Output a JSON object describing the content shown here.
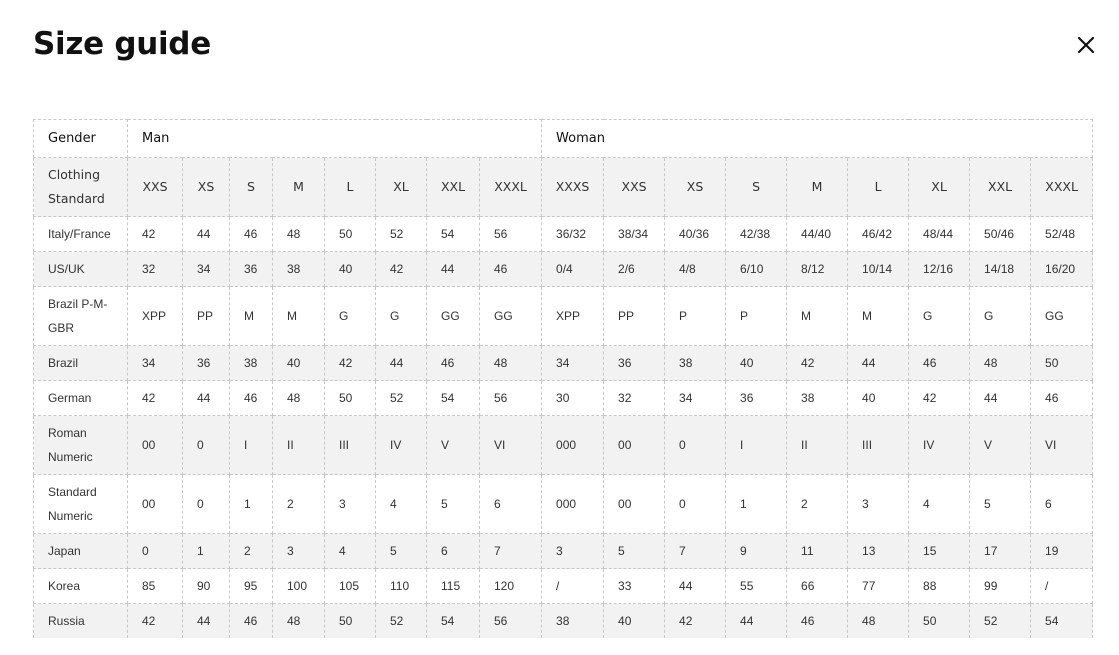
{
  "title": "Size guide",
  "close_icon": "close-icon",
  "table": {
    "gender_label": "Gender",
    "groups": [
      "Man",
      "Woman"
    ],
    "standard_label": "Clothing Standard",
    "man_sizes": [
      "XXS",
      "XS",
      "S",
      "M",
      "L",
      "XL",
      "XXL",
      "XXXL"
    ],
    "woman_sizes": [
      "XXXS",
      "XXS",
      "XS",
      "S",
      "M",
      "L",
      "XL",
      "XXL",
      "XXXL"
    ],
    "rows": [
      {
        "label": "Italy/France",
        "man": [
          "42",
          "44",
          "46",
          "48",
          "50",
          "52",
          "54",
          "56"
        ],
        "woman": [
          "36/32",
          "38/34",
          "40/36",
          "42/38",
          "44/40",
          "46/42",
          "48/44",
          "50/46",
          "52/48"
        ]
      },
      {
        "label": "US/UK",
        "man": [
          "32",
          "34",
          "36",
          "38",
          "40",
          "42",
          "44",
          "46"
        ],
        "woman": [
          "0/4",
          "2/6",
          "4/8",
          "6/10",
          "8/12",
          "10/14",
          "12/16",
          "14/18",
          "16/20"
        ]
      },
      {
        "label": "Brazil P-M-GBR",
        "man": [
          "XPP",
          "PP",
          "M",
          "M",
          "G",
          "G",
          "GG",
          "GG"
        ],
        "woman": [
          "XPP",
          "PP",
          "P",
          "P",
          "M",
          "M",
          "G",
          "G",
          "GG"
        ]
      },
      {
        "label": "Brazil",
        "man": [
          "34",
          "36",
          "38",
          "40",
          "42",
          "44",
          "46",
          "48"
        ],
        "woman": [
          "34",
          "36",
          "38",
          "40",
          "42",
          "44",
          "46",
          "48",
          "50"
        ]
      },
      {
        "label": "German",
        "man": [
          "42",
          "44",
          "46",
          "48",
          "50",
          "52",
          "54",
          "56"
        ],
        "woman": [
          "30",
          "32",
          "34",
          "36",
          "38",
          "40",
          "42",
          "44",
          "46"
        ]
      },
      {
        "label": "Roman Numeric",
        "man": [
          "00",
          "0",
          "I",
          "II",
          "III",
          "IV",
          "V",
          "VI"
        ],
        "woman": [
          "000",
          "00",
          "0",
          "I",
          "II",
          "III",
          "IV",
          "V",
          "VI"
        ]
      },
      {
        "label": "Standard Numeric",
        "man": [
          "00",
          "0",
          "1",
          "2",
          "3",
          "4",
          "5",
          "6"
        ],
        "woman": [
          "000",
          "00",
          "0",
          "1",
          "2",
          "3",
          "4",
          "5",
          "6"
        ]
      },
      {
        "label": "Japan",
        "man": [
          "0",
          "1",
          "2",
          "3",
          "4",
          "5",
          "6",
          "7"
        ],
        "woman": [
          "3",
          "5",
          "7",
          "9",
          "11",
          "13",
          "15",
          "17",
          "19"
        ]
      },
      {
        "label": "Korea",
        "man": [
          "85",
          "90",
          "95",
          "100",
          "105",
          "110",
          "115",
          "120"
        ],
        "woman": [
          "/",
          "33",
          "44",
          "55",
          "66",
          "77",
          "88",
          "99",
          "/"
        ]
      },
      {
        "label": "Russia",
        "man": [
          "42",
          "44",
          "46",
          "48",
          "50",
          "52",
          "54",
          "56"
        ],
        "woman": [
          "38",
          "40",
          "42",
          "44",
          "46",
          "48",
          "50",
          "52",
          "54"
        ]
      }
    ]
  }
}
